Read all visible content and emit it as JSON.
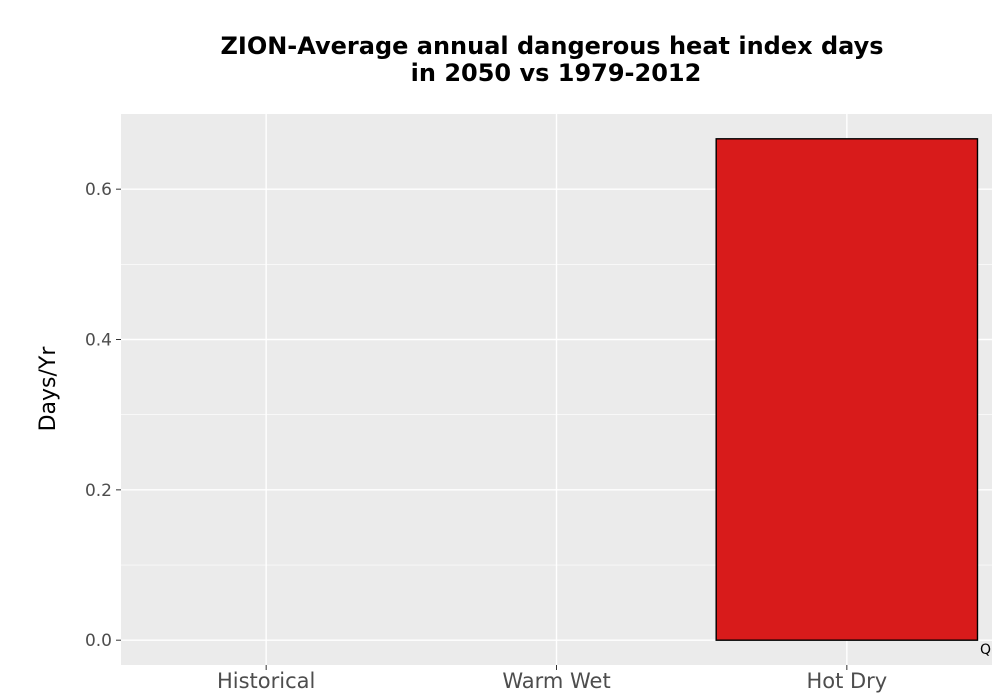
{
  "chart_data": {
    "type": "bar",
    "title_lines": [
      "ZION-Average annual dangerous heat index days",
      "in 2050 vs 1979-2012"
    ],
    "xlabel": "",
    "ylabel": "Days/Yr",
    "categories": [
      "Historical",
      "Warm Wet",
      "Hot Dry"
    ],
    "values": [
      0.0,
      0.0,
      0.667
    ],
    "bar_colors": [
      "#000000",
      "#000000",
      "#d81b1b"
    ],
    "bar_outline_color": "#000000",
    "ylim": [
      -0.033,
      0.7
    ],
    "yticks": [
      0.0,
      0.2,
      0.4,
      0.6
    ],
    "ytick_labels": [
      "0.0",
      "0.2",
      "0.4",
      "0.6"
    ],
    "grid": true,
    "legend": "none",
    "panel_background": "#ebebeb",
    "annotation": "Q"
  }
}
